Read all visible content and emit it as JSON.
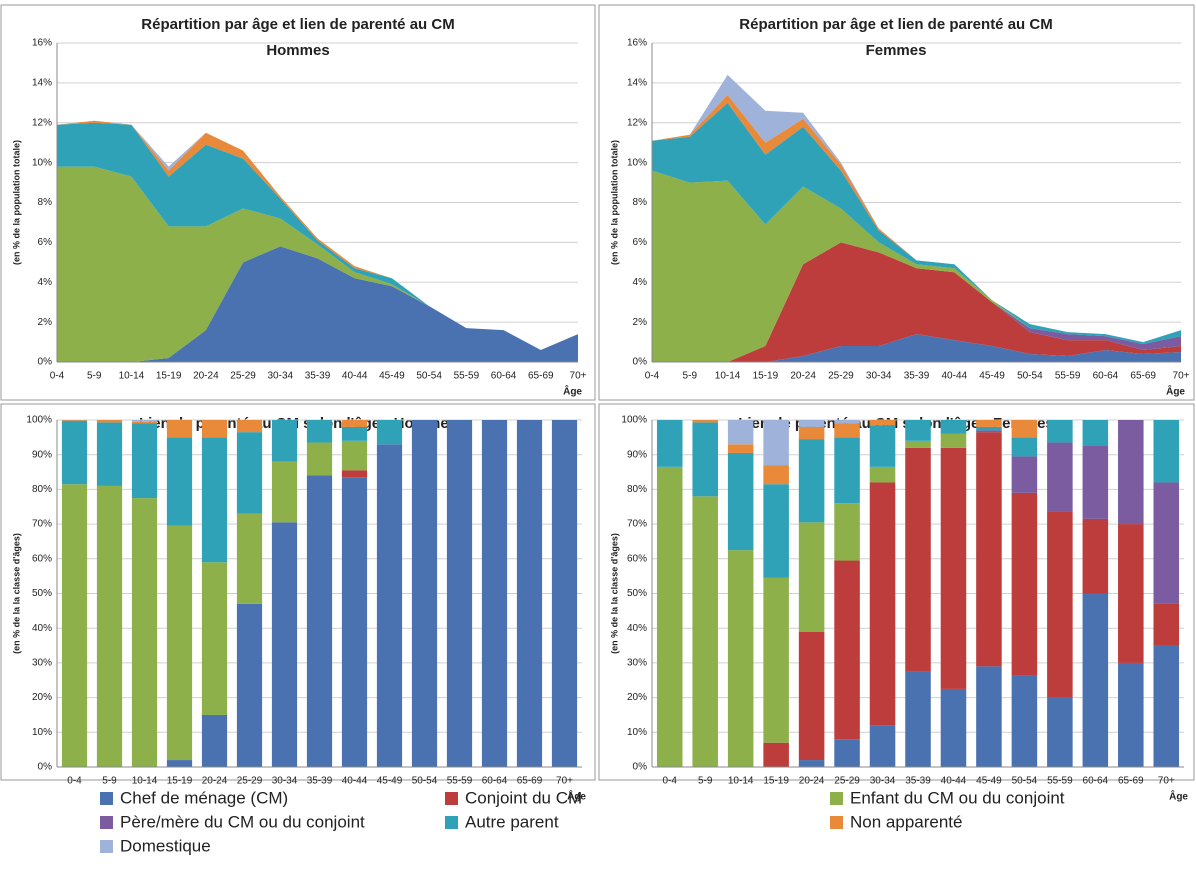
{
  "chart_data": [
    {
      "type": "area",
      "title": "Répartition par âge et lien de parenté au CM",
      "subtitle": "Hommes",
      "y_label": "(en % de la population totale)",
      "x_label": "Âge",
      "categories": [
        "0-4",
        "5-9",
        "10-14",
        "15-19",
        "20-24",
        "25-29",
        "30-34",
        "35-39",
        "40-44",
        "45-49",
        "50-54",
        "55-59",
        "60-64",
        "65-69",
        "70+"
      ],
      "ylim": [
        0,
        16
      ],
      "yticks": [
        {
          "value": 0,
          "label": "0%"
        },
        {
          "value": 2,
          "label": "2%"
        },
        {
          "value": 4,
          "label": "4%"
        },
        {
          "value": 6,
          "label": "6%"
        },
        {
          "value": 8,
          "label": "8%"
        },
        {
          "value": 10,
          "label": "10%"
        },
        {
          "value": 12,
          "label": "12%"
        },
        {
          "value": 14,
          "label": "14%"
        },
        {
          "value": 16,
          "label": "16%"
        }
      ],
      "grid": true,
      "series": [
        {
          "name": "Chef de ménage (CM)",
          "color": "#4a72b0",
          "values": [
            0,
            0,
            0,
            0.2,
            1.6,
            5.0,
            5.8,
            5.2,
            4.2,
            3.8,
            2.8,
            1.7,
            1.6,
            0.6,
            1.4
          ]
        },
        {
          "name": "Enfant du CM ou du conjoint",
          "color": "#8db04b",
          "values": [
            9.8,
            9.8,
            9.3,
            6.6,
            5.2,
            2.7,
            1.4,
            0.7,
            0.3,
            0.1,
            0,
            0,
            0,
            0,
            0
          ]
        },
        {
          "name": "Autre parent",
          "color": "#2fa2b8",
          "values": [
            2.1,
            2.2,
            2.6,
            2.5,
            4.1,
            2.5,
            1.0,
            0.2,
            0.2,
            0.3,
            0,
            0,
            0,
            0,
            0
          ]
        },
        {
          "name": "Non apparenté",
          "color": "#e88a3a",
          "values": [
            0,
            0.1,
            0,
            0.3,
            0.6,
            0.4,
            0.1,
            0.1,
            0.1,
            0,
            0,
            0,
            0,
            0,
            0
          ]
        },
        {
          "name": "Domestique",
          "color": "#9fb3da",
          "values": [
            0,
            0,
            0,
            0.2,
            0,
            0,
            0,
            0,
            0,
            0,
            0,
            0,
            0,
            0,
            0
          ]
        }
      ]
    },
    {
      "type": "area",
      "title": "Répartition par âge et lien de parenté au CM",
      "subtitle": "Femmes",
      "y_label": "(en % de la population totale)",
      "x_label": "Âge",
      "categories": [
        "0-4",
        "5-9",
        "10-14",
        "15-19",
        "20-24",
        "25-29",
        "30-34",
        "35-39",
        "40-44",
        "45-49",
        "50-54",
        "55-59",
        "60-64",
        "65-69",
        "70+"
      ],
      "ylim": [
        0,
        16
      ],
      "yticks": [
        {
          "value": 0,
          "label": "0%"
        },
        {
          "value": 2,
          "label": "2%"
        },
        {
          "value": 4,
          "label": "4%"
        },
        {
          "value": 6,
          "label": "6%"
        },
        {
          "value": 8,
          "label": "8%"
        },
        {
          "value": 10,
          "label": "10%"
        },
        {
          "value": 12,
          "label": "12%"
        },
        {
          "value": 14,
          "label": "14%"
        },
        {
          "value": 16,
          "label": "16%"
        }
      ],
      "grid": true,
      "series": [
        {
          "name": "Chef de ménage (CM)",
          "color": "#4a72b0",
          "values": [
            0,
            0,
            0,
            0,
            0.3,
            0.8,
            0.8,
            1.4,
            1.1,
            0.8,
            0.4,
            0.3,
            0.6,
            0.4,
            0.5
          ]
        },
        {
          "name": "Conjoint du CM",
          "color": "#bd3c3c",
          "values": [
            0,
            0,
            0,
            0.8,
            4.6,
            5.2,
            4.7,
            3.3,
            3.4,
            2.2,
            1.1,
            0.8,
            0.5,
            0.2,
            0.3
          ]
        },
        {
          "name": "Père/mère du CM ou du conjoint",
          "color": "#7b5ca1",
          "values": [
            0,
            0,
            0,
            0,
            0,
            0,
            0,
            0,
            0,
            0,
            0.2,
            0.3,
            0.2,
            0.3,
            0.5
          ]
        },
        {
          "name": "Enfant du CM ou du conjoint",
          "color": "#8db04b",
          "values": [
            9.6,
            9.0,
            9.1,
            6.1,
            3.9,
            1.7,
            0.5,
            0.2,
            0.2,
            0.1,
            0,
            0,
            0,
            0,
            0
          ]
        },
        {
          "name": "Autre parent",
          "color": "#2fa2b8",
          "values": [
            1.5,
            2.3,
            3.9,
            3.5,
            3.0,
            1.9,
            0.6,
            0.2,
            0.2,
            0,
            0.2,
            0.1,
            0.1,
            0.1,
            0.3
          ]
        },
        {
          "name": "Non apparenté",
          "color": "#e88a3a",
          "values": [
            0,
            0.1,
            0.4,
            0.6,
            0.4,
            0.3,
            0.1,
            0,
            0,
            0,
            0,
            0,
            0,
            0,
            0
          ]
        },
        {
          "name": "Domestique",
          "color": "#9fb3da",
          "values": [
            0,
            0,
            1.0,
            1.6,
            0.3,
            0.1,
            0,
            0,
            0,
            0,
            0,
            0,
            0,
            0,
            0
          ]
        }
      ]
    },
    {
      "type": "bar",
      "title": "Lien de parenté au CM selon l'âge • Hommes",
      "y_label": "(en % de la la classe d'âges)",
      "x_label": "Âge",
      "categories": [
        "0-4",
        "5-9",
        "10-14",
        "15-19",
        "20-24",
        "25-29",
        "30-34",
        "35-39",
        "40-44",
        "45-49",
        "50-54",
        "55-59",
        "60-64",
        "65-69",
        "70+"
      ],
      "ylim": [
        0,
        100
      ],
      "yticks": [
        {
          "value": 0,
          "label": "0%"
        },
        {
          "value": 10,
          "label": "10%"
        },
        {
          "value": 20,
          "label": "20%"
        },
        {
          "value": 30,
          "label": "30%"
        },
        {
          "value": 40,
          "label": "40%"
        },
        {
          "value": 50,
          "label": "50%"
        },
        {
          "value": 60,
          "label": "60%"
        },
        {
          "value": 70,
          "label": "70%"
        },
        {
          "value": 80,
          "label": "80%"
        },
        {
          "value": 90,
          "label": "90%"
        },
        {
          "value": 100,
          "label": "100%"
        }
      ],
      "grid": true,
      "series": [
        {
          "name": "Chef de ménage (CM)",
          "color": "#4a72b0",
          "values": [
            0,
            0,
            0,
            2,
            15,
            47,
            70.5,
            84,
            83.5,
            93,
            100,
            100,
            100,
            100,
            100
          ]
        },
        {
          "name": "Conjoint du CM",
          "color": "#bd3c3c",
          "values": [
            0,
            0,
            0,
            0,
            0,
            0,
            0,
            0,
            2,
            0,
            0,
            0,
            0,
            0,
            0
          ]
        },
        {
          "name": "Enfant du CM ou du conjoint",
          "color": "#8db04b",
          "values": [
            81.5,
            81,
            77.5,
            67.5,
            44,
            26,
            17.5,
            9.5,
            8.5,
            0,
            0,
            0,
            0,
            0,
            0
          ]
        },
        {
          "name": "Autre parent",
          "color": "#2fa2b8",
          "values": [
            18.3,
            18.3,
            21.5,
            25.5,
            36,
            23.5,
            12,
            6.5,
            4,
            7,
            0,
            0,
            0,
            0,
            0
          ]
        },
        {
          "name": "Non apparenté",
          "color": "#e88a3a",
          "values": [
            0.2,
            0.7,
            0.5,
            5,
            5,
            3.5,
            0,
            0,
            2,
            0,
            0,
            0,
            0,
            0,
            0
          ]
        },
        {
          "name": "Domestique",
          "color": "#9fb3da",
          "values": [
            0,
            0,
            0.5,
            0,
            0,
            0,
            0,
            0,
            0,
            0,
            0,
            0,
            0,
            0,
            0
          ]
        }
      ]
    },
    {
      "type": "bar",
      "title": "Lien de parenté au CM selon l'âge • Femmes",
      "y_label": "(en % de la la classe d'âges)",
      "x_label": "Âge",
      "categories": [
        "0-4",
        "5-9",
        "10-14",
        "15-19",
        "20-24",
        "25-29",
        "30-34",
        "35-39",
        "40-44",
        "45-49",
        "50-54",
        "55-59",
        "60-64",
        "65-69",
        "70+"
      ],
      "ylim": [
        0,
        100
      ],
      "yticks": [
        {
          "value": 0,
          "label": "0%"
        },
        {
          "value": 10,
          "label": "10%"
        },
        {
          "value": 20,
          "label": "20%"
        },
        {
          "value": 30,
          "label": "30%"
        },
        {
          "value": 40,
          "label": "40%"
        },
        {
          "value": 50,
          "label": "50%"
        },
        {
          "value": 60,
          "label": "60%"
        },
        {
          "value": 70,
          "label": "70%"
        },
        {
          "value": 80,
          "label": "80%"
        },
        {
          "value": 90,
          "label": "90%"
        },
        {
          "value": 100,
          "label": "100%"
        }
      ],
      "grid": true,
      "series": [
        {
          "name": "Chef de ménage (CM)",
          "color": "#4a72b0",
          "values": [
            0,
            0,
            0,
            0,
            2,
            8,
            12,
            27.5,
            22.5,
            29,
            26.5,
            20,
            50,
            30,
            35
          ]
        },
        {
          "name": "Conjoint du CM",
          "color": "#bd3c3c",
          "values": [
            0,
            0,
            0,
            7,
            37,
            51.5,
            70,
            64.5,
            69.5,
            67.5,
            52.5,
            53.5,
            21.5,
            40,
            12
          ]
        },
        {
          "name": "Père/mère du CM ou du conjoint",
          "color": "#7b5ca1",
          "values": [
            0,
            0,
            0,
            0,
            0,
            0,
            0,
            0,
            0,
            0.5,
            10.5,
            20,
            21,
            30,
            35
          ]
        },
        {
          "name": "Enfant du CM ou du conjoint",
          "color": "#8db04b",
          "values": [
            86.5,
            78,
            62.5,
            47.5,
            31.5,
            16.5,
            4.5,
            2,
            4,
            0,
            0,
            0,
            0,
            0,
            0
          ]
        },
        {
          "name": "Autre parent",
          "color": "#2fa2b8",
          "values": [
            13.5,
            21.3,
            28,
            27,
            24,
            19,
            12,
            6,
            4,
            1,
            5.5,
            6.5,
            7.5,
            0,
            18
          ]
        },
        {
          "name": "Non apparenté",
          "color": "#e88a3a",
          "values": [
            0,
            0.7,
            2.5,
            5.5,
            3.5,
            4,
            1.5,
            0,
            0,
            2,
            5,
            0,
            0,
            0,
            0
          ]
        },
        {
          "name": "Domestique",
          "color": "#9fb3da",
          "values": [
            0,
            0,
            7,
            13,
            2,
            1,
            0,
            0,
            0,
            0,
            0,
            0,
            0,
            0,
            0
          ]
        }
      ]
    }
  ]
}
